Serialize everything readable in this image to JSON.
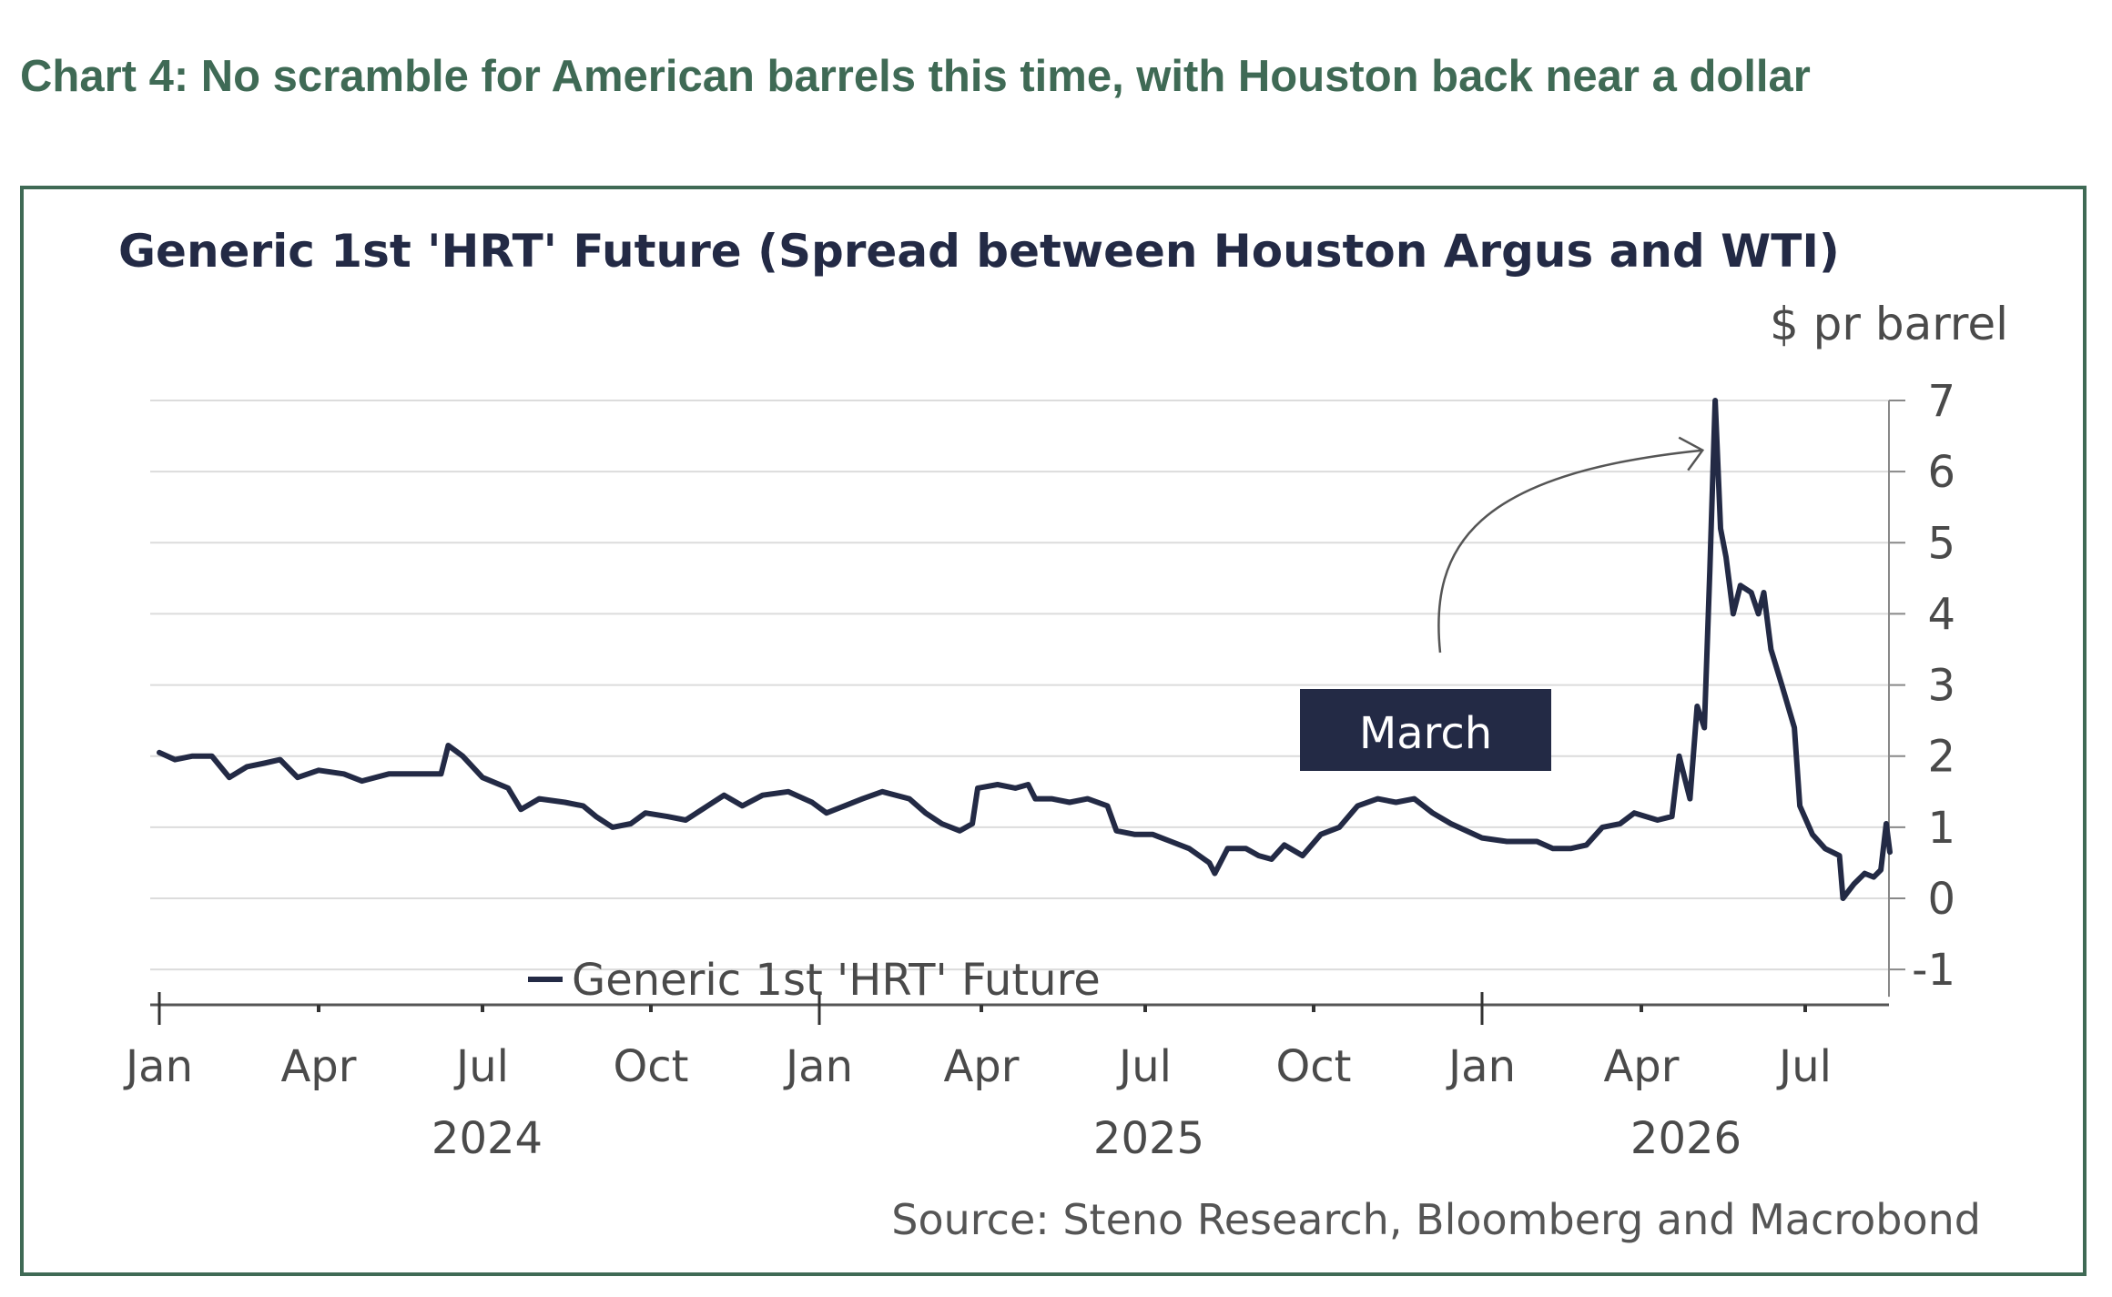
{
  "headline": "Chart 4: No scramble for American barrels this time, with Houston back near a dollar",
  "chart_data": {
    "type": "line",
    "title": "Generic 1st 'HRT' Future (Spread between Houston Argus and WTI)",
    "unit_label": "$ pr barrel",
    "ylim": [
      -1,
      7
    ],
    "yticks": [
      "7",
      "6",
      "5",
      "4",
      "3",
      "2",
      "1",
      "0",
      "-1"
    ],
    "xticks": [
      {
        "label": "Jan",
        "date": "2024-01-01"
      },
      {
        "label": "Apr",
        "date": "2024-04-01"
      },
      {
        "label": "Jul",
        "date": "2024-07-01"
      },
      {
        "label": "Oct",
        "date": "2024-10-01"
      },
      {
        "label": "Jan",
        "date": "2025-01-01"
      },
      {
        "label": "Apr",
        "date": "2025-04-01"
      },
      {
        "label": "Jul",
        "date": "2025-07-01"
      },
      {
        "label": "Oct",
        "date": "2025-10-01"
      },
      {
        "label": "Jan",
        "date": "2026-01-01"
      },
      {
        "label": "Apr",
        "date": "2026-04-01"
      },
      {
        "label": "Jul",
        "date": "2026-07-01"
      }
    ],
    "year_labels": [
      "2024",
      "2025",
      "2026"
    ],
    "grid": true,
    "legend_position": "bottom-left",
    "series": [
      {
        "name": "Generic 1st 'HRT' Future",
        "color": "#232a45",
        "points": [
          [
            "2024-01-01",
            2.05
          ],
          [
            "2024-01-10",
            1.95
          ],
          [
            "2024-01-20",
            2.0
          ],
          [
            "2024-01-31",
            2.0
          ],
          [
            "2024-02-10",
            1.7
          ],
          [
            "2024-02-20",
            1.85
          ],
          [
            "2024-03-01",
            1.9
          ],
          [
            "2024-03-10",
            1.95
          ],
          [
            "2024-03-20",
            1.7
          ],
          [
            "2024-04-01",
            1.8
          ],
          [
            "2024-04-15",
            1.75
          ],
          [
            "2024-04-25",
            1.65
          ],
          [
            "2024-05-10",
            1.75
          ],
          [
            "2024-05-25",
            1.75
          ],
          [
            "2024-06-08",
            1.75
          ],
          [
            "2024-06-12",
            2.15
          ],
          [
            "2024-06-20",
            2.0
          ],
          [
            "2024-07-01",
            1.7
          ],
          [
            "2024-07-15",
            1.55
          ],
          [
            "2024-07-22",
            1.25
          ],
          [
            "2024-08-01",
            1.4
          ],
          [
            "2024-08-15",
            1.35
          ],
          [
            "2024-08-25",
            1.3
          ],
          [
            "2024-09-01",
            1.15
          ],
          [
            "2024-09-10",
            1.0
          ],
          [
            "2024-09-20",
            1.05
          ],
          [
            "2024-09-28",
            1.2
          ],
          [
            "2024-10-10",
            1.15
          ],
          [
            "2024-10-20",
            1.1
          ],
          [
            "2024-11-01",
            1.3
          ],
          [
            "2024-11-10",
            1.45
          ],
          [
            "2024-11-20",
            1.3
          ],
          [
            "2024-12-01",
            1.45
          ],
          [
            "2024-12-15",
            1.5
          ],
          [
            "2024-12-28",
            1.35
          ],
          [
            "2025-01-05",
            1.2
          ],
          [
            "2025-01-15",
            1.3
          ],
          [
            "2025-01-25",
            1.4
          ],
          [
            "2025-02-05",
            1.5
          ],
          [
            "2025-02-20",
            1.4
          ],
          [
            "2025-03-01",
            1.2
          ],
          [
            "2025-03-10",
            1.05
          ],
          [
            "2025-03-20",
            0.95
          ],
          [
            "2025-03-27",
            1.05
          ],
          [
            "2025-03-30",
            1.55
          ],
          [
            "2025-04-10",
            1.6
          ],
          [
            "2025-04-20",
            1.55
          ],
          [
            "2025-04-27",
            1.6
          ],
          [
            "2025-05-01",
            1.4
          ],
          [
            "2025-05-10",
            1.4
          ],
          [
            "2025-05-20",
            1.35
          ],
          [
            "2025-05-30",
            1.4
          ],
          [
            "2025-06-10",
            1.3
          ],
          [
            "2025-06-15",
            0.95
          ],
          [
            "2025-06-25",
            0.9
          ],
          [
            "2025-07-05",
            0.9
          ],
          [
            "2025-07-15",
            0.8
          ],
          [
            "2025-07-25",
            0.7
          ],
          [
            "2025-08-05",
            0.5
          ],
          [
            "2025-08-08",
            0.35
          ],
          [
            "2025-08-15",
            0.7
          ],
          [
            "2025-08-25",
            0.7
          ],
          [
            "2025-09-01",
            0.6
          ],
          [
            "2025-09-08",
            0.55
          ],
          [
            "2025-09-15",
            0.75
          ],
          [
            "2025-09-25",
            0.6
          ],
          [
            "2025-10-05",
            0.9
          ],
          [
            "2025-10-15",
            1.0
          ],
          [
            "2025-10-25",
            1.3
          ],
          [
            "2025-11-05",
            1.4
          ],
          [
            "2025-11-15",
            1.35
          ],
          [
            "2025-11-25",
            1.4
          ],
          [
            "2025-12-05",
            1.2
          ],
          [
            "2025-12-15",
            1.05
          ],
          [
            "2026-01-01",
            0.85
          ],
          [
            "2026-01-15",
            0.8
          ],
          [
            "2026-02-01",
            0.8
          ],
          [
            "2026-02-10",
            0.7
          ],
          [
            "2026-02-20",
            0.7
          ],
          [
            "2026-03-01",
            0.75
          ],
          [
            "2026-03-10",
            1.0
          ],
          [
            "2026-03-20",
            1.05
          ],
          [
            "2026-03-28",
            1.2
          ],
          [
            "2026-04-10",
            1.1
          ],
          [
            "2026-04-18",
            1.15
          ],
          [
            "2026-04-22",
            2.0
          ],
          [
            "2026-04-28",
            1.4
          ],
          [
            "2026-05-02",
            2.7
          ],
          [
            "2026-05-06",
            2.4
          ],
          [
            "2026-05-09",
            4.6
          ],
          [
            "2026-05-12",
            7.0
          ],
          [
            "2026-05-15",
            5.2
          ],
          [
            "2026-05-18",
            4.8
          ],
          [
            "2026-05-22",
            4.0
          ],
          [
            "2026-05-26",
            4.4
          ],
          [
            "2026-06-01",
            4.3
          ],
          [
            "2026-06-05",
            4.0
          ],
          [
            "2026-06-08",
            4.3
          ],
          [
            "2026-06-12",
            3.5
          ],
          [
            "2026-06-18",
            3.0
          ],
          [
            "2026-06-25",
            2.4
          ],
          [
            "2026-06-28",
            1.3
          ],
          [
            "2026-07-05",
            0.9
          ],
          [
            "2026-07-12",
            0.7
          ],
          [
            "2026-07-20",
            0.6
          ],
          [
            "2026-07-22",
            0.0
          ],
          [
            "2026-07-28",
            0.2
          ],
          [
            "2026-08-03",
            0.35
          ],
          [
            "2026-08-08",
            0.3
          ],
          [
            "2026-08-12",
            0.4
          ],
          [
            "2026-08-15",
            1.05
          ],
          [
            "2026-08-17",
            0.65
          ]
        ]
      }
    ],
    "annotations": [
      {
        "text": "March",
        "style": "dark-box",
        "arrow_to_date": "2026-05-05",
        "arrow_to_value": 6.3
      }
    ],
    "source": "Source: Steno Research, Bloomberg and Macrobond"
  }
}
